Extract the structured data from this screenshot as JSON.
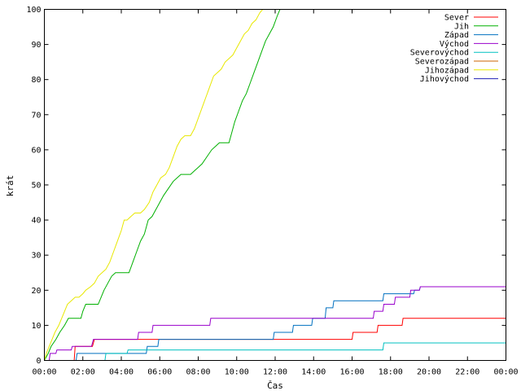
{
  "chart_data": {
    "type": "line",
    "title": "",
    "xlabel": "Čas",
    "ylabel": "krát",
    "xlim": [
      0,
      24
    ],
    "ylim": [
      0,
      100
    ],
    "grid": false,
    "legend_position": "top-right",
    "x_ticks": [
      "00:00",
      "02:00",
      "04:00",
      "06:00",
      "08:00",
      "10:00",
      "12:00",
      "14:00",
      "16:00",
      "18:00",
      "20:00",
      "22:00",
      "00:00"
    ],
    "y_ticks": [
      0,
      10,
      20,
      30,
      40,
      50,
      60,
      70,
      80,
      90,
      100
    ],
    "series": [
      {
        "name": "Sever",
        "color": "#ff0000",
        "points": [
          [
            1.55,
            0
          ],
          [
            1.6,
            4
          ],
          [
            2.5,
            4
          ],
          [
            2.55,
            5
          ],
          [
            2.6,
            6
          ],
          [
            16.0,
            6
          ],
          [
            16.05,
            8
          ],
          [
            17.3,
            8
          ],
          [
            17.35,
            10
          ],
          [
            18.6,
            10
          ],
          [
            18.65,
            12
          ],
          [
            24,
            12
          ]
        ]
      },
      {
        "name": "Jih",
        "color": "#00b000",
        "points": [
          [
            0,
            0
          ],
          [
            0.2,
            2
          ],
          [
            0.35,
            4
          ],
          [
            0.6,
            6
          ],
          [
            0.8,
            8
          ],
          [
            1.05,
            10
          ],
          [
            1.25,
            12
          ],
          [
            1.9,
            12
          ],
          [
            2.0,
            14
          ],
          [
            2.15,
            16
          ],
          [
            2.8,
            16
          ],
          [
            2.95,
            18
          ],
          [
            3.1,
            20
          ],
          [
            3.3,
            22
          ],
          [
            3.5,
            24
          ],
          [
            3.7,
            25
          ],
          [
            4.4,
            25
          ],
          [
            4.6,
            28
          ],
          [
            4.8,
            31
          ],
          [
            5.0,
            34
          ],
          [
            5.2,
            36
          ],
          [
            5.4,
            40
          ],
          [
            5.6,
            41
          ],
          [
            5.8,
            43
          ],
          [
            6.0,
            45
          ],
          [
            6.2,
            47
          ],
          [
            6.45,
            49
          ],
          [
            6.7,
            51
          ],
          [
            6.9,
            52
          ],
          [
            7.1,
            53
          ],
          [
            7.6,
            53
          ],
          [
            7.8,
            54
          ],
          [
            8.0,
            55
          ],
          [
            8.2,
            56
          ],
          [
            8.45,
            58
          ],
          [
            8.7,
            60
          ],
          [
            8.9,
            61
          ],
          [
            9.1,
            62
          ],
          [
            9.6,
            62
          ],
          [
            9.75,
            65
          ],
          [
            9.9,
            68
          ],
          [
            10.1,
            71
          ],
          [
            10.3,
            74
          ],
          [
            10.5,
            76
          ],
          [
            10.7,
            79
          ],
          [
            10.9,
            82
          ],
          [
            11.1,
            85
          ],
          [
            11.3,
            88
          ],
          [
            11.5,
            91
          ],
          [
            11.7,
            93
          ],
          [
            11.9,
            95
          ],
          [
            12.1,
            98
          ],
          [
            12.25,
            100
          ]
        ]
      },
      {
        "name": "Západ",
        "color": "#0070c0",
        "points": [
          [
            1.65,
            0
          ],
          [
            1.7,
            2
          ],
          [
            5.3,
            2
          ],
          [
            5.35,
            4
          ],
          [
            5.9,
            4
          ],
          [
            5.95,
            6
          ],
          [
            11.9,
            6
          ],
          [
            11.95,
            8
          ],
          [
            12.9,
            8
          ],
          [
            12.95,
            10
          ],
          [
            13.9,
            10
          ],
          [
            13.95,
            12
          ],
          [
            14.6,
            12
          ],
          [
            14.65,
            15
          ],
          [
            15.0,
            15
          ],
          [
            15.05,
            17
          ],
          [
            17.6,
            17
          ],
          [
            17.65,
            19
          ],
          [
            19.2,
            19
          ],
          [
            19.25,
            20
          ],
          [
            19.5,
            20
          ],
          [
            19.55,
            21
          ],
          [
            24,
            21
          ]
        ]
      },
      {
        "name": "Východ",
        "color": "#9900cc",
        "points": [
          [
            0.25,
            0
          ],
          [
            0.3,
            2
          ],
          [
            0.6,
            2
          ],
          [
            0.65,
            3
          ],
          [
            1.4,
            3
          ],
          [
            1.45,
            4
          ],
          [
            2.45,
            4
          ],
          [
            2.5,
            5
          ],
          [
            2.55,
            6
          ],
          [
            4.85,
            6
          ],
          [
            4.9,
            8
          ],
          [
            5.6,
            8
          ],
          [
            5.65,
            10
          ],
          [
            8.6,
            10
          ],
          [
            8.65,
            12
          ],
          [
            17.1,
            12
          ],
          [
            17.15,
            14
          ],
          [
            17.6,
            14
          ],
          [
            17.65,
            16
          ],
          [
            18.2,
            16
          ],
          [
            18.25,
            18
          ],
          [
            19.0,
            18
          ],
          [
            19.05,
            20
          ],
          [
            19.5,
            20
          ],
          [
            19.55,
            21
          ],
          [
            24,
            21
          ]
        ]
      },
      {
        "name": "Severovýchod",
        "color": "#00c0c0",
        "points": [
          [
            3.15,
            0
          ],
          [
            3.2,
            2
          ],
          [
            4.3,
            2
          ],
          [
            4.35,
            3
          ],
          [
            17.6,
            3
          ],
          [
            17.65,
            5
          ],
          [
            24,
            5
          ]
        ]
      },
      {
        "name": "Severozápad",
        "color": "#cc6600",
        "points": []
      },
      {
        "name": "Jihozápad",
        "color": "#e8e800",
        "points": [
          [
            0,
            0
          ],
          [
            0.1,
            2
          ],
          [
            0.25,
            4
          ],
          [
            0.4,
            6
          ],
          [
            0.55,
            8
          ],
          [
            0.75,
            10
          ],
          [
            0.9,
            12
          ],
          [
            1.05,
            14
          ],
          [
            1.2,
            16
          ],
          [
            1.4,
            17
          ],
          [
            1.6,
            18
          ],
          [
            1.8,
            18
          ],
          [
            2.0,
            19
          ],
          [
            2.15,
            20
          ],
          [
            2.4,
            21
          ],
          [
            2.6,
            22
          ],
          [
            2.8,
            24
          ],
          [
            3.0,
            25
          ],
          [
            3.2,
            26
          ],
          [
            3.4,
            28
          ],
          [
            3.6,
            31
          ],
          [
            3.8,
            34
          ],
          [
            4.0,
            37
          ],
          [
            4.15,
            40
          ],
          [
            4.3,
            40
          ],
          [
            4.5,
            41
          ],
          [
            4.7,
            42
          ],
          [
            5.0,
            42
          ],
          [
            5.2,
            43
          ],
          [
            5.45,
            45
          ],
          [
            5.65,
            48
          ],
          [
            5.85,
            50
          ],
          [
            6.05,
            52
          ],
          [
            6.3,
            53
          ],
          [
            6.5,
            55
          ],
          [
            6.7,
            58
          ],
          [
            6.9,
            61
          ],
          [
            7.1,
            63
          ],
          [
            7.3,
            64
          ],
          [
            7.6,
            64
          ],
          [
            7.8,
            66
          ],
          [
            8.0,
            69
          ],
          [
            8.2,
            72
          ],
          [
            8.4,
            75
          ],
          [
            8.6,
            78
          ],
          [
            8.8,
            81
          ],
          [
            9.0,
            82
          ],
          [
            9.2,
            83
          ],
          [
            9.4,
            85
          ],
          [
            9.6,
            86
          ],
          [
            9.8,
            87
          ],
          [
            10.0,
            89
          ],
          [
            10.2,
            91
          ],
          [
            10.4,
            93
          ],
          [
            10.6,
            94
          ],
          [
            10.8,
            96
          ],
          [
            11.0,
            97
          ],
          [
            11.2,
            99
          ],
          [
            11.35,
            100
          ]
        ]
      },
      {
        "name": "Jihovýchod",
        "color": "#1f1fb4",
        "points": []
      }
    ]
  }
}
